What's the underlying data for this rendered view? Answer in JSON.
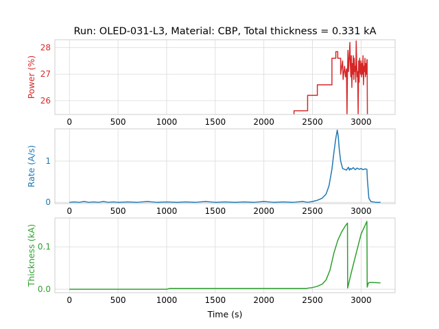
{
  "title": "Run: OLED-031-L3, Material: CBP, Total thickness = 0.331 kA",
  "xlabel": "Time (s)",
  "chart_data": [
    {
      "type": "line",
      "ylabel": "Power (%)",
      "color": "#d62728",
      "xlim": [
        -150,
        3350
      ],
      "ylim": [
        25.48,
        28.3
      ],
      "xticks": [
        0,
        500,
        1000,
        1500,
        2000,
        2500,
        3000
      ],
      "yticks": [
        26,
        27,
        28
      ],
      "series": [
        {
          "x": [
            2310,
            2310,
            2450,
            2450,
            2550,
            2550,
            2700,
            2700,
            2740,
            2740,
            2760,
            2760,
            2790,
            2790,
            2810,
            2815,
            2830,
            2840,
            2850,
            2855,
            2860,
            2865,
            2870,
            2878,
            2885,
            2890,
            2895,
            2900,
            2905,
            2910,
            2915,
            2920,
            2925,
            2930,
            2935,
            2940,
            2945,
            2950,
            2955,
            2960,
            2965,
            2970,
            2975,
            2980,
            2985,
            2990,
            2995,
            3000,
            3005,
            3010,
            3015,
            3020,
            3025,
            3030,
            3035,
            3040,
            3045,
            3050,
            3055,
            3060,
            3062,
            3065
          ],
          "y": [
            25.48,
            25.62,
            25.62,
            26.2,
            26.2,
            26.6,
            26.6,
            27.6,
            27.6,
            27.85,
            27.85,
            27.6,
            27.6,
            27.0,
            27.5,
            26.8,
            27.3,
            26.9,
            27.2,
            25.48,
            27.0,
            27.9,
            27.1,
            27.6,
            28.2,
            27.3,
            26.9,
            27.7,
            26.5,
            27.4,
            27.0,
            27.7,
            26.8,
            27.6,
            27.1,
            27.3,
            26.7,
            28.25,
            27.4,
            26.9,
            27.1,
            25.48,
            27.5,
            26.7,
            27.6,
            27.2,
            27.0,
            27.5,
            26.9,
            27.4,
            27.0,
            27.7,
            26.6,
            27.3,
            27.1,
            27.6,
            26.9,
            27.4,
            27.0,
            27.55,
            27.55,
            25.48
          ]
        }
      ]
    },
    {
      "type": "line",
      "ylabel": "Rate (A/s)",
      "color": "#1f77b4",
      "xlim": [
        -150,
        3350
      ],
      "ylim": [
        -0.03,
        1.78
      ],
      "xticks": [
        0,
        500,
        1000,
        1500,
        2000,
        2500,
        3000
      ],
      "yticks": [
        0,
        1
      ],
      "series": [
        {
          "x": [
            0,
            50,
            100,
            150,
            200,
            250,
            300,
            350,
            400,
            450,
            500,
            600,
            700,
            800,
            900,
            1000,
            1100,
            1200,
            1300,
            1400,
            1500,
            1600,
            1700,
            1800,
            1900,
            2000,
            2100,
            2200,
            2300,
            2400,
            2450,
            2500,
            2550,
            2600,
            2640,
            2670,
            2700,
            2720,
            2740,
            2755,
            2765,
            2775,
            2790,
            2810,
            2830,
            2850,
            2860,
            2870,
            2880,
            2890,
            2900,
            2920,
            2940,
            2960,
            2980,
            3000,
            3020,
            3040,
            3060,
            3065,
            3080,
            3100,
            3150,
            3200
          ],
          "y": [
            0.0,
            0.01,
            0.0,
            0.02,
            0.0,
            0.01,
            0.0,
            0.02,
            0.0,
            0.01,
            0.0,
            0.01,
            0.0,
            0.02,
            0.0,
            0.01,
            0.0,
            0.01,
            0.0,
            0.02,
            0.0,
            0.01,
            0.0,
            0.01,
            0.0,
            0.02,
            0.0,
            0.01,
            0.0,
            0.02,
            0.0,
            0.02,
            0.05,
            0.1,
            0.2,
            0.4,
            0.8,
            1.2,
            1.55,
            1.75,
            1.6,
            1.3,
            1.0,
            0.82,
            0.8,
            0.78,
            0.82,
            0.85,
            0.78,
            0.82,
            0.8,
            0.84,
            0.79,
            0.83,
            0.8,
            0.82,
            0.79,
            0.81,
            0.8,
            0.55,
            0.1,
            0.02,
            0.0,
            0.0
          ]
        }
      ]
    },
    {
      "type": "line",
      "ylabel": "Thickness (kA)",
      "color": "#2ca02c",
      "xlim": [
        -150,
        3350
      ],
      "ylim": [
        -0.008,
        0.168
      ],
      "xticks": [
        0,
        500,
        1000,
        1500,
        2000,
        2500,
        3000
      ],
      "yticks": [
        0.0,
        0.1
      ],
      "series": [
        {
          "x": [
            0,
            500,
            1000,
            1030,
            1500,
            2000,
            2440,
            2460,
            2500,
            2550,
            2600,
            2640,
            2680,
            2720,
            2760,
            2800,
            2840,
            2860,
            2862,
            2900,
            2950,
            3000,
            3060,
            3063,
            3075,
            3090,
            3120,
            3200
          ],
          "y": [
            0.0,
            0.0,
            0.0,
            0.002,
            0.002,
            0.002,
            0.002,
            0.003,
            0.004,
            0.007,
            0.012,
            0.022,
            0.045,
            0.085,
            0.115,
            0.135,
            0.15,
            0.156,
            0.003,
            0.04,
            0.085,
            0.13,
            0.16,
            0.005,
            0.015,
            0.016,
            0.016,
            0.015
          ]
        }
      ]
    }
  ]
}
